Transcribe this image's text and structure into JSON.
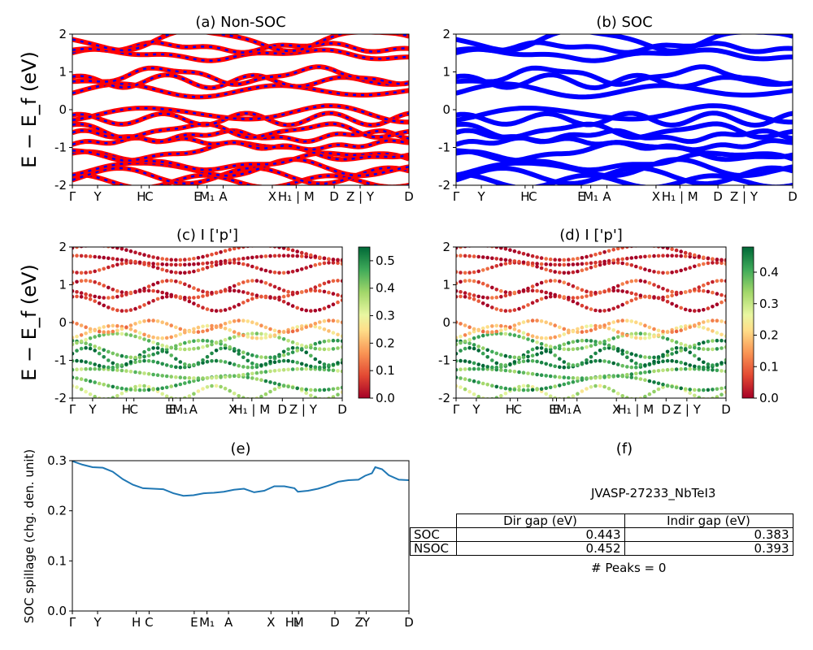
{
  "chart_data": [
    {
      "type": "line",
      "title": "(a) Non-SOC",
      "ylabel": "E − E_f (eV)",
      "ylim": [
        -2,
        2
      ],
      "yticks": [
        -2,
        -1,
        0,
        1,
        2
      ],
      "kpath_labels": [
        "Γ",
        "Y",
        "H",
        "C",
        "E",
        "M₁",
        "A",
        "X",
        "H₁ | M",
        "D",
        "Z | Y",
        "D"
      ],
      "kpath_positions": [
        0,
        0.075,
        0.205,
        0.228,
        0.372,
        0.4,
        0.448,
        0.594,
        0.665,
        0.778,
        0.855,
        1.0
      ],
      "series": [
        {
          "color": "#ff0000",
          "style": "thick band"
        },
        {
          "color": "#0000ff",
          "style": "dashed overlay"
        }
      ],
      "bands_eV": [
        -1.9,
        -1.75,
        -1.55,
        -1.35,
        -1.1,
        -0.9,
        -0.7,
        -0.55,
        -0.25,
        -0.1,
        0.5,
        0.75,
        0.9,
        1.45,
        1.65,
        1.85
      ]
    },
    {
      "type": "line",
      "title": "(b) SOC",
      "ylim": [
        -2,
        2
      ],
      "yticks": [
        -2,
        -1,
        0,
        1,
        2
      ],
      "kpath_labels": [
        "Γ",
        "Y",
        "H",
        "C",
        "E",
        "M₁",
        "A",
        "X",
        "H₁ | M",
        "D",
        "Z | Y",
        "D"
      ],
      "series": [
        {
          "color": "#0000ff",
          "style": "band"
        }
      ],
      "bands_eV": [
        -1.9,
        -1.75,
        -1.55,
        -1.35,
        -1.1,
        -0.9,
        -0.7,
        -0.55,
        -0.25,
        -0.1,
        0.5,
        0.75,
        0.9,
        1.45,
        1.65,
        1.85
      ]
    },
    {
      "type": "scatter",
      "title": "(c)  I ['p']",
      "ylabel": "E − E_f (eV)",
      "ylim": [
        -2,
        2
      ],
      "yticks": [
        -2,
        -1,
        0,
        1,
        2
      ],
      "kpath_labels": [
        "Γ",
        "Y",
        "H",
        "C",
        "E",
        "E",
        "M₁",
        "A",
        "X",
        "H₁ | M",
        "D",
        "Z | Y",
        "D"
      ],
      "kpath_positions": [
        0,
        0.075,
        0.2,
        0.228,
        0.358,
        0.372,
        0.4,
        0.448,
        0.594,
        0.665,
        0.778,
        0.855,
        1.0
      ],
      "colorbar": {
        "cmap": "RdYlGn",
        "min": 0.0,
        "max": 0.55,
        "ticks": [
          0.0,
          0.1,
          0.2,
          0.3,
          0.4,
          0.5
        ]
      },
      "bands_eV": [
        -1.85,
        -1.6,
        -1.35,
        -1.1,
        -0.9,
        -0.7,
        -0.5,
        -0.25,
        -0.1,
        0.5,
        0.75,
        0.95,
        1.45,
        1.65,
        1.85
      ],
      "band_weights": [
        0.35,
        0.45,
        0.4,
        0.5,
        0.52,
        0.45,
        0.38,
        0.22,
        0.18,
        0.04,
        0.05,
        0.06,
        0.05,
        0.03,
        0.04
      ]
    },
    {
      "type": "scatter",
      "title": "(d) I ['p']",
      "ylim": [
        -2,
        2
      ],
      "yticks": [
        -2,
        -1,
        0,
        1,
        2
      ],
      "kpath_labels": [
        "Γ",
        "Y",
        "H",
        "C",
        "E",
        "E",
        "M₁",
        "A",
        "X",
        "H₁ | M",
        "D",
        "Z | Y",
        "D"
      ],
      "colorbar": {
        "cmap": "RdYlGn",
        "min": 0.0,
        "max": 0.48,
        "ticks": [
          0.0,
          0.1,
          0.2,
          0.3,
          0.4
        ]
      },
      "bands_eV": [
        -1.85,
        -1.6,
        -1.35,
        -1.1,
        -0.9,
        -0.7,
        -0.5,
        -0.25,
        -0.1,
        0.5,
        0.75,
        0.95,
        1.45,
        1.65,
        1.85
      ],
      "band_weights": [
        0.3,
        0.4,
        0.38,
        0.45,
        0.46,
        0.42,
        0.36,
        0.2,
        0.16,
        0.04,
        0.05,
        0.06,
        0.05,
        0.03,
        0.04
      ]
    },
    {
      "type": "line",
      "title": "(e)",
      "ylabel": "SOC spillage (chg. den. unit)",
      "ylim": [
        0.0,
        0.3
      ],
      "yticks": [
        0.0,
        0.1,
        0.2,
        0.3
      ],
      "kpath_labels": [
        "Γ",
        "Y",
        "H",
        "C",
        "E",
        "M₁",
        "A",
        "X",
        "H₁",
        "M",
        "D",
        "Z",
        "Y",
        "D"
      ],
      "series": [
        {
          "color": "#1f77b4",
          "x": [
            0,
            0.03,
            0.06,
            0.09,
            0.12,
            0.15,
            0.18,
            0.21,
            0.24,
            0.27,
            0.3,
            0.33,
            0.36,
            0.39,
            0.42,
            0.45,
            0.48,
            0.51,
            0.54,
            0.57,
            0.6,
            0.63,
            0.66,
            0.67,
            0.7,
            0.73,
            0.76,
            0.79,
            0.82,
            0.85,
            0.87,
            0.89,
            0.9,
            0.92,
            0.94,
            0.97,
            1.0
          ],
          "y": [
            0.299,
            0.292,
            0.287,
            0.286,
            0.278,
            0.263,
            0.252,
            0.245,
            0.244,
            0.243,
            0.235,
            0.23,
            0.231,
            0.235,
            0.236,
            0.238,
            0.242,
            0.244,
            0.237,
            0.24,
            0.249,
            0.249,
            0.245,
            0.238,
            0.24,
            0.244,
            0.25,
            0.258,
            0.261,
            0.262,
            0.27,
            0.275,
            0.287,
            0.283,
            0.271,
            0.262,
            0.261
          ]
        }
      ]
    }
  ],
  "panel_f": {
    "title": "(f)",
    "material": "JVASP-27233_NbTeI3",
    "headers": [
      "Dir gap (eV)",
      "Indir gap (eV)"
    ],
    "rows": [
      {
        "label": "SOC",
        "dir": "0.443",
        "indir": "0.383"
      },
      {
        "label": "NSOC",
        "dir": "0.452",
        "indir": "0.393"
      }
    ],
    "peaks": "# Peaks = 0"
  }
}
